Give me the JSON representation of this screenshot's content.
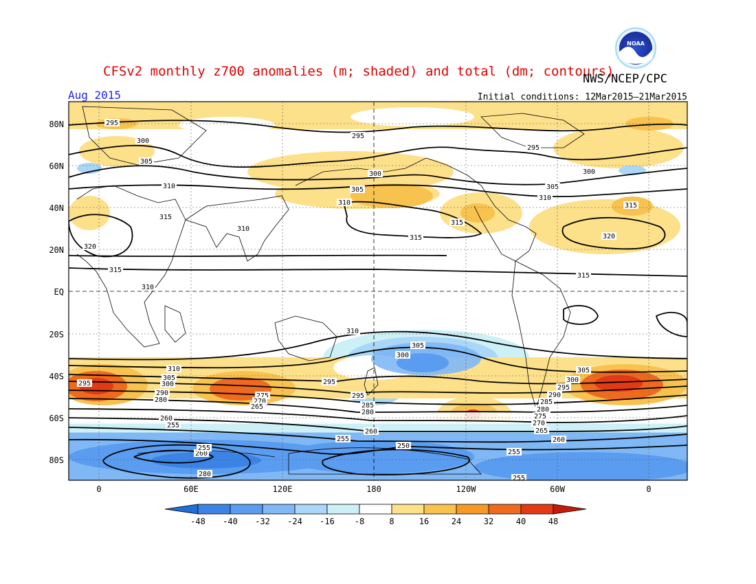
{
  "title": "CFSv2 monthly z700 anomalies (m; shaded) and total (dm; contours)",
  "agency": "NWS/NCEP/CPC",
  "logo_text": "NOAA",
  "valid_month": "Aug 2015",
  "initial_conditions": "Initial conditions: 12Mar2015–21Mar2015",
  "colors": {
    "title": "#dd0000",
    "month": "#2222ee",
    "contour": "#000000",
    "grid": "#333333"
  },
  "axes": {
    "lat_labels": [
      "80N",
      "60N",
      "40N",
      "20N",
      "EQ",
      "20S",
      "40S",
      "60S",
      "80S"
    ],
    "lon_labels": [
      "0",
      "60E",
      "120E",
      "180",
      "120W",
      "60W",
      "0"
    ]
  },
  "colorbar": {
    "labels": [
      "-48",
      "-40",
      "-32",
      "-24",
      "-16",
      "-8",
      "8",
      "16",
      "24",
      "32",
      "40",
      "48"
    ],
    "colors": [
      "#1f6fd6",
      "#3b84e6",
      "#5a9cf0",
      "#80b8f5",
      "#aad6f7",
      "#cdf0f7",
      "#ffffff",
      "#fde08a",
      "#f8c24f",
      "#f59a28",
      "#ee6a1e",
      "#e23a14",
      "#c41a0c"
    ]
  },
  "contour_labels": [
    {
      "text": "295"
    },
    {
      "text": "300"
    },
    {
      "text": "305"
    },
    {
      "text": "310"
    },
    {
      "text": "320"
    },
    {
      "text": "315"
    },
    {
      "text": "315"
    },
    {
      "text": "295"
    },
    {
      "text": "300"
    },
    {
      "text": "305"
    },
    {
      "text": "310"
    },
    {
      "text": "310"
    },
    {
      "text": "315"
    },
    {
      "text": "315"
    },
    {
      "text": "295"
    },
    {
      "text": "300"
    },
    {
      "text": "305"
    },
    {
      "text": "310"
    },
    {
      "text": "315"
    },
    {
      "text": "320"
    },
    {
      "text": "315"
    },
    {
      "text": "310"
    },
    {
      "text": "305"
    },
    {
      "text": "300"
    },
    {
      "text": "310"
    },
    {
      "text": "295"
    },
    {
      "text": "310"
    },
    {
      "text": "305"
    },
    {
      "text": "300"
    },
    {
      "text": "290"
    },
    {
      "text": "280"
    },
    {
      "text": "295"
    },
    {
      "text": "275"
    },
    {
      "text": "270"
    },
    {
      "text": "265"
    },
    {
      "text": "260"
    },
    {
      "text": "255"
    },
    {
      "text": "295"
    },
    {
      "text": "290"
    },
    {
      "text": "285"
    },
    {
      "text": "280"
    },
    {
      "text": "260"
    },
    {
      "text": "255"
    },
    {
      "text": "260"
    },
    {
      "text": "255"
    },
    {
      "text": "250"
    },
    {
      "text": "255"
    },
    {
      "text": "305"
    },
    {
      "text": "300"
    },
    {
      "text": "295"
    },
    {
      "text": "290"
    },
    {
      "text": "285"
    },
    {
      "text": "280"
    },
    {
      "text": "275"
    },
    {
      "text": "270"
    },
    {
      "text": "265"
    },
    {
      "text": "260"
    },
    {
      "text": "255"
    },
    {
      "text": "255"
    },
    {
      "text": "280"
    }
  ]
}
